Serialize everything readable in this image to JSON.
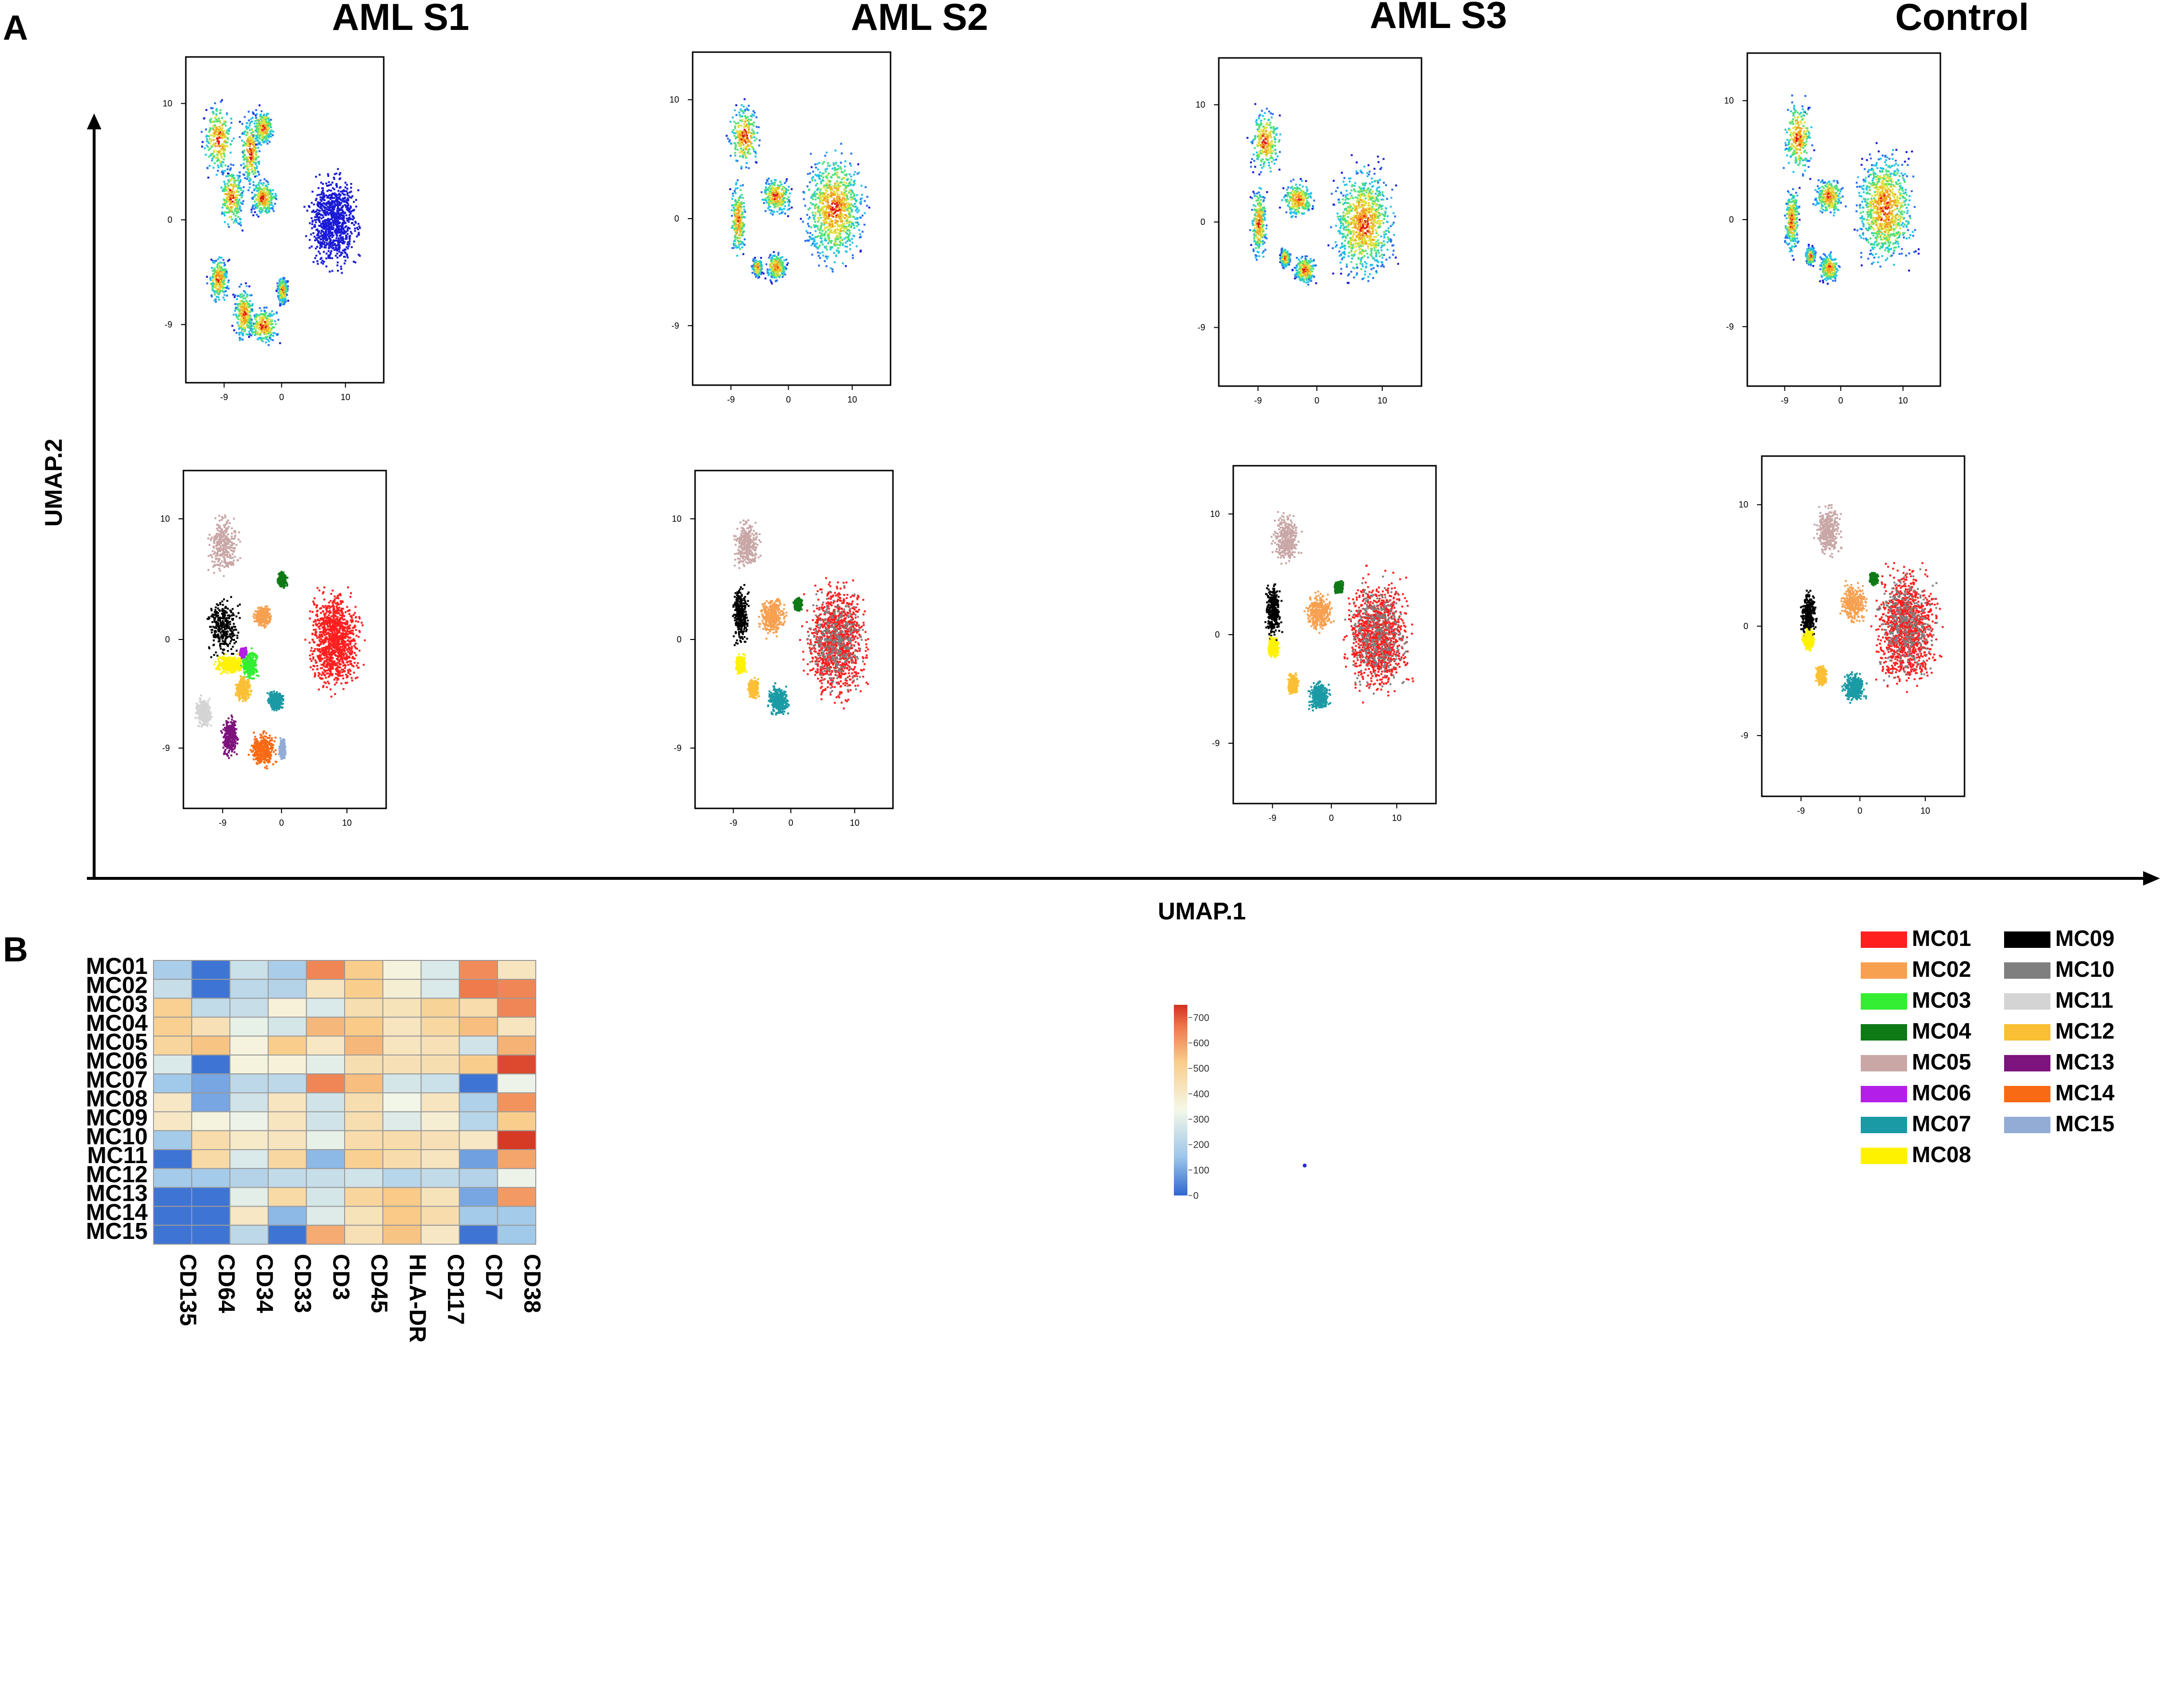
{
  "panel_a": {
    "label": "A",
    "x_axis_label": "UMAP.1",
    "y_axis_label": "UMAP.2",
    "tick_labels": [
      "-9",
      "0",
      "10"
    ],
    "y_tick_labels": [
      "10",
      "0",
      "-9"
    ],
    "samples": [
      {
        "title": "AML S1"
      },
      {
        "title": "AML S2"
      },
      {
        "title": "AML S3"
      },
      {
        "title": "Control"
      }
    ]
  },
  "panel_b": {
    "label": "B",
    "colorbar": {
      "ticks": [
        "700",
        "600",
        "500",
        "400",
        "300",
        "200",
        "100",
        "0"
      ],
      "min": 0,
      "max": 750
    }
  },
  "legend": {
    "items": [
      {
        "label": "MC01",
        "color": "#ff1f1f"
      },
      {
        "label": "MC02",
        "color": "#f7a050"
      },
      {
        "label": "MC03",
        "color": "#33ee33"
      },
      {
        "label": "MC04",
        "color": "#0e7a16"
      },
      {
        "label": "MC05",
        "color": "#c9a7a7"
      },
      {
        "label": "MC06",
        "color": "#b31fe8"
      },
      {
        "label": "MC07",
        "color": "#1a9aa4"
      },
      {
        "label": "MC08",
        "color": "#fff200"
      },
      {
        "label": "MC09",
        "color": "#000000"
      },
      {
        "label": "MC10",
        "color": "#7f7f7f"
      },
      {
        "label": "MC11",
        "color": "#d4d4d4"
      },
      {
        "label": "MC12",
        "color": "#fbbf35"
      },
      {
        "label": "MC13",
        "color": "#7d137d"
      },
      {
        "label": "MC14",
        "color": "#f96a14"
      },
      {
        "label": "MC15",
        "color": "#92acd6"
      }
    ]
  },
  "chart_data": [
    {
      "type": "scatter",
      "title": "AML S1 / AML S2 / AML S3 / Control (UMAP density and metacluster maps)",
      "xlabel": "UMAP.1",
      "ylabel": "UMAP.2",
      "xlim": [
        -15,
        16
      ],
      "ylim": [
        -14,
        14
      ],
      "x_ticks": [
        -9,
        0,
        10
      ],
      "y_ticks": [
        -9,
        0,
        10
      ]
    },
    {
      "type": "heatmap",
      "title": "",
      "rows": [
        "MC01",
        "MC02",
        "MC03",
        "MC04",
        "MC05",
        "MC06",
        "MC07",
        "MC08",
        "MC09",
        "MC10",
        "MC11",
        "MC12",
        "MC13",
        "MC14",
        "MC15"
      ],
      "columns": [
        "CD135",
        "CD64",
        "CD34",
        "CD33",
        "CD3",
        "CD45",
        "HLA-DR",
        "CD117",
        "CD7",
        "CD38"
      ],
      "values": [
        [
          180,
          20,
          250,
          180,
          640,
          520,
          360,
          280,
          630,
          420
        ],
        [
          240,
          20,
          220,
          200,
          420,
          520,
          380,
          280,
          660,
          640
        ],
        [
          510,
          230,
          240,
          370,
          280,
          450,
          430,
          500,
          460,
          640
        ],
        [
          510,
          440,
          310,
          270,
          560,
          530,
          420,
          480,
          550,
          420
        ],
        [
          490,
          540,
          360,
          520,
          410,
          560,
          420,
          440,
          260,
          570
        ],
        [
          280,
          20,
          360,
          370,
          300,
          450,
          440,
          450,
          520,
          720
        ],
        [
          160,
          100,
          220,
          220,
          640,
          550,
          270,
          250,
          20,
          320
        ],
        [
          410,
          100,
          260,
          420,
          260,
          450,
          330,
          420,
          190,
          620
        ],
        [
          410,
          360,
          320,
          420,
          260,
          450,
          290,
          380,
          210,
          520
        ],
        [
          170,
          460,
          400,
          420,
          310,
          460,
          460,
          440,
          410,
          740
        ],
        [
          20,
          470,
          280,
          480,
          130,
          510,
          460,
          420,
          90,
          590
        ],
        [
          170,
          170,
          200,
          230,
          240,
          260,
          210,
          230,
          200,
          320
        ],
        [
          20,
          20,
          300,
          470,
          270,
          490,
          530,
          430,
          100,
          610
        ],
        [
          20,
          20,
          410,
          130,
          290,
          430,
          530,
          460,
          170,
          170
        ],
        [
          20,
          20,
          220,
          20,
          580,
          440,
          540,
          410,
          20,
          160
        ]
      ],
      "colorbar_range": [
        0,
        750
      ]
    }
  ]
}
